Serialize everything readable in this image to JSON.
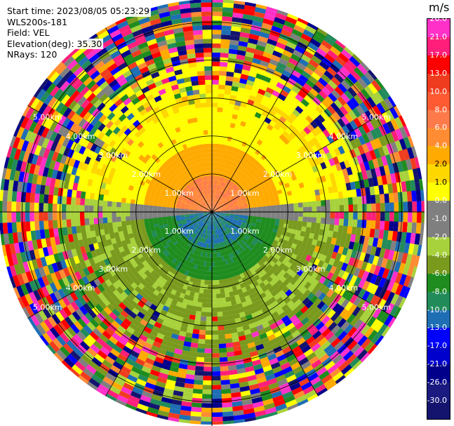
{
  "info": {
    "start_time": "Start time: 2023/08/05 05:23:29",
    "instrument": "WLS200s-181",
    "field": "Field: VEL",
    "elevation": "Elevation(deg): 35.30",
    "nrays": "NRays: 120"
  },
  "colorbar": {
    "unit": "m/s",
    "labels": [
      "26.0",
      "21.0",
      "17.0",
      "13.0",
      "10.0",
      "8.0",
      "6.0",
      "4.0",
      "2.0",
      "1.0",
      "0.0",
      "-1.0",
      "-2.0",
      "-4.0",
      "-6.0",
      "-8.0",
      "-10.0",
      "-13.0",
      "-17.0",
      "-21.0",
      "-26.0",
      "-30.0"
    ],
    "colors": [
      "#ff30c8",
      "#ff1f7a",
      "#ff0000",
      "#f03c1e",
      "#ff5a32",
      "#ff7a4a",
      "#ff8c32",
      "#ffaa00",
      "#ffd700",
      "#ffff00",
      "#808080",
      "#7f7f7f",
      "#a8d23c",
      "#7a9a1e",
      "#1e8c1e",
      "#228b5a",
      "#1e6eb4",
      "#0000ff",
      "#0000cc",
      "#00008b",
      "#1a1a80",
      "#14146e"
    ]
  },
  "chart_data": {
    "type": "ppi",
    "field": "VEL",
    "units": "m/s",
    "elevation_deg": 35.3,
    "n_rays": 120,
    "range_rings_km": [
      1.0,
      2.0,
      3.0,
      4.0,
      5.0
    ],
    "ring_labels": [
      "1.00km",
      "2.00km",
      "3.00km",
      "4.00km",
      "5.00km"
    ],
    "spoke_angles_deg": [
      0,
      30,
      60,
      90,
      120,
      150,
      180,
      210,
      240,
      270,
      300,
      330
    ],
    "max_range_km": 5.6,
    "color_scale": [
      -30,
      -26,
      -21,
      -17,
      -13,
      -10,
      -8,
      -6,
      -4,
      -2,
      -1,
      0,
      1,
      2,
      4,
      6,
      8,
      10,
      13,
      17,
      21,
      26
    ]
  }
}
